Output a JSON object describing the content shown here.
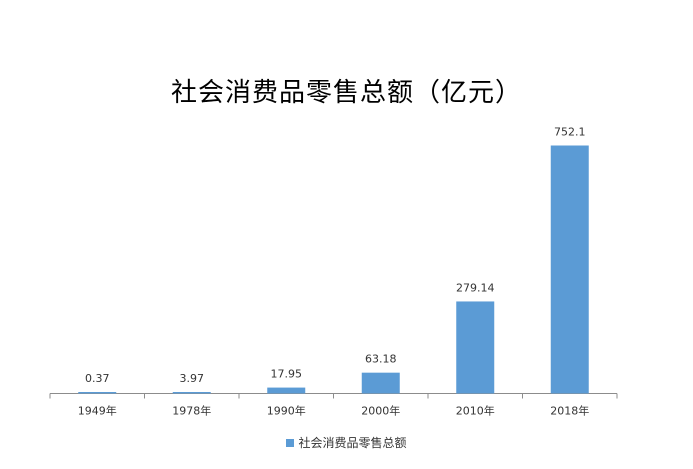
{
  "chart_data": {
    "type": "bar",
    "title": "社会消费品零售总额（亿元）",
    "categories": [
      "1949年",
      "1978年",
      "1990年",
      "2000年",
      "2010年",
      "2018年"
    ],
    "series": [
      {
        "name": "社会消费品零售总额",
        "values": [
          0.37,
          3.97,
          17.95,
          63.18,
          279.14,
          752.1
        ],
        "data_labels": [
          "0.37",
          "3.97",
          "17.95",
          "63.18",
          "279.14",
          "752.1"
        ]
      }
    ],
    "ylim": [
      0,
      800
    ],
    "grid": false,
    "legend_position": "bottom",
    "bar_color": "#5B9BD5"
  }
}
